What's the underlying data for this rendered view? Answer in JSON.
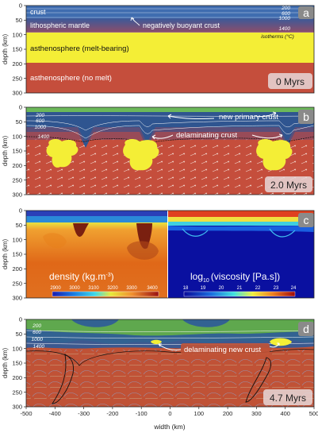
{
  "panels": {
    "a": {
      "letter": "a",
      "time": "0 Myrs",
      "labels": {
        "crust": "crust",
        "lith": "lithospheric mantle",
        "buoyant": "negatively buoyant crust",
        "asth_melt": "asthenosphere (melt-bearing)",
        "asth_nomelt": "asthenosphere (no melt)",
        "isotherms": "isotherms (°C)"
      },
      "isotherms": [
        "200",
        "600",
        "1000",
        "1400"
      ]
    },
    "b": {
      "letter": "b",
      "time": "2.0 Myrs",
      "labels": {
        "primary": "new primary crust",
        "delam": "delaminating crust"
      },
      "isotherms": [
        "200",
        "600",
        "1000",
        "1400"
      ]
    },
    "c": {
      "letter": "c",
      "density_label": "density (kg.m",
      "density_sup": "-3",
      "density_close": ")",
      "viscosity_log": "log",
      "viscosity_sub": "10",
      "viscosity_label": "(viscosity [Pa.s])",
      "density_ticks": [
        "2900",
        "3000",
        "3100",
        "3200",
        "3300",
        "3400"
      ],
      "viscosity_ticks": [
        "18",
        "19",
        "20",
        "21",
        "22",
        "23",
        "24"
      ]
    },
    "d": {
      "letter": "d",
      "time": "4.7 Myrs",
      "labels": {
        "delam_new": "delaminating new crust"
      },
      "isotherms": [
        "200",
        "600",
        "1000",
        "1400"
      ]
    }
  },
  "axes": {
    "ylabel": "depth (km)",
    "xlabel": "width (km)",
    "yticks": [
      "0",
      "50",
      "100",
      "150",
      "200",
      "250",
      "300"
    ],
    "xticks": [
      "-500",
      "-400",
      "-300",
      "-200",
      "-100",
      "0",
      "100",
      "200",
      "300",
      "400",
      "500"
    ]
  },
  "colors": {
    "crust": "#3f6db0",
    "asthenosphere": "#c54e3c",
    "melt": "#f4ee36",
    "surface_crust": "#6cb85a"
  }
}
